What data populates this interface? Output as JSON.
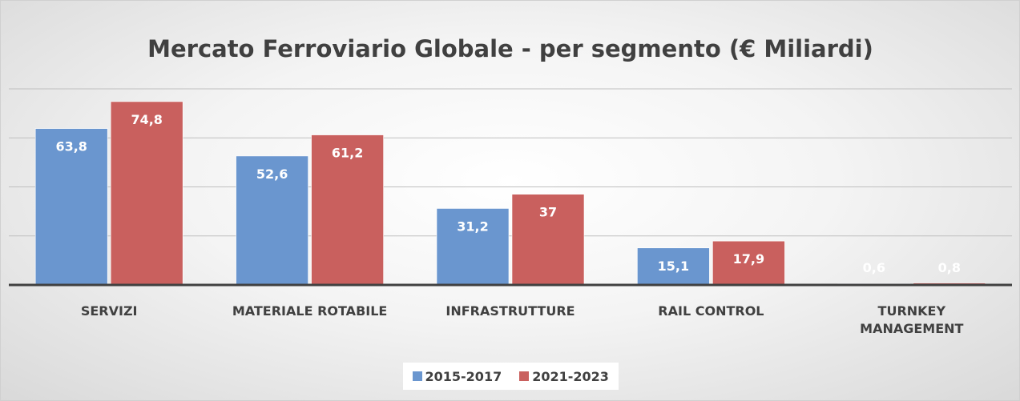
{
  "chart_data": {
    "type": "bar",
    "title": "Mercato Ferroviario Globale - per segmento (€ Miliardi)",
    "categories": [
      "SERVIZI",
      "MATERIALE ROTABILE",
      "INFRASTRUTTURE",
      "RAIL CONTROL",
      "TURNKEY MANAGEMENT"
    ],
    "series": [
      {
        "name": "2015-2017",
        "color": "#6a96cf",
        "values": [
          63.8,
          52.6,
          31.2,
          15.1,
          0.6
        ],
        "value_labels": [
          "63,8",
          "52,6",
          "31,2",
          "15,1",
          "0,6"
        ]
      },
      {
        "name": "2021-2023",
        "color": "#c9605e",
        "values": [
          74.8,
          61.2,
          37,
          17.9,
          0.8
        ],
        "value_labels": [
          "74,8",
          "61,2",
          "37",
          "17,9",
          "0,8"
        ]
      }
    ],
    "ylim": [
      0,
      80
    ],
    "yticks": [
      0,
      20,
      40,
      60,
      80
    ],
    "grid": true,
    "legend": "bottom"
  }
}
